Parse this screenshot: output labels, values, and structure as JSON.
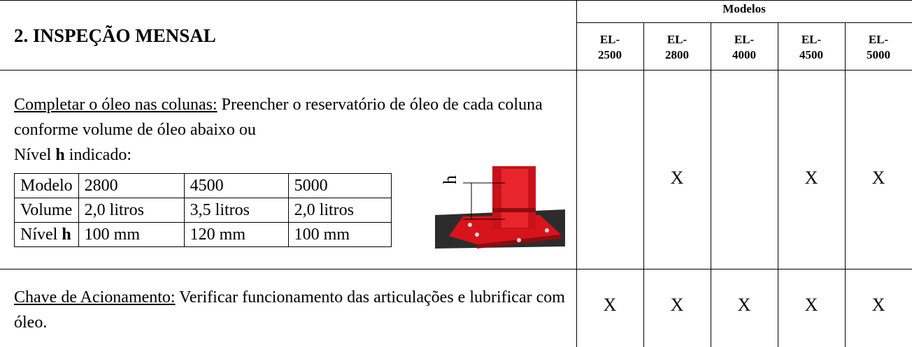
{
  "header": {
    "title": "2. INSPEÇÃO MENSAL",
    "models_label": "Modelos",
    "models": [
      "EL-\n2500",
      "EL-\n2800",
      "EL-\n4000",
      "EL-\n4500",
      "EL-\n5000"
    ]
  },
  "rows": [
    {
      "lead": "Completar o óleo nas colunas:",
      "text": " Preencher o reservatório de óleo de cada coluna conforme volume de óleo abaixo ou",
      "text2": "Nível ",
      "text2_bold": "h",
      "text3": " indicado:",
      "spec_table": {
        "rows": [
          [
            [
              "Modelo"
            ],
            [
              "2800"
            ],
            [
              "4500"
            ],
            [
              "5000"
            ]
          ],
          [
            [
              "Volume"
            ],
            [
              "2,0 litros"
            ],
            [
              "3,5 litros"
            ],
            [
              "2,0 litros"
            ]
          ],
          [
            [
              "Nível ",
              "h"
            ],
            [
              "100 mm"
            ],
            [
              "120 mm"
            ],
            [
              "100 mm"
            ]
          ]
        ]
      },
      "image_label": "h",
      "marks": [
        null,
        "X",
        null,
        "X",
        "X"
      ]
    },
    {
      "lead": "Chave de Acionamento:",
      "text": " Verificar funcionamento das articulações e lubrificar com óleo.",
      "marks": [
        "X",
        "X",
        "X",
        "X",
        "X"
      ]
    }
  ]
}
